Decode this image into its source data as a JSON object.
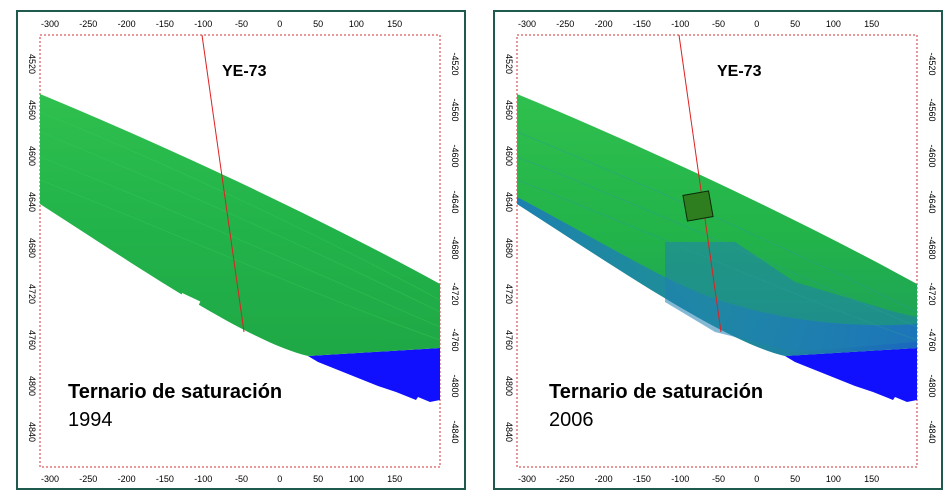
{
  "panels": [
    {
      "well_label": "YE-73",
      "caption_title": "Ternario de saturación",
      "caption_year": "1994",
      "x_ticks": [
        "-300",
        "-250",
        "-200",
        "-150",
        "-100",
        "-50",
        "0",
        "50",
        "100",
        "150"
      ],
      "y_ticks_left": [
        "4520",
        "4560",
        "4600",
        "4640",
        "4680",
        "4720",
        "4760",
        "4800",
        "4840"
      ],
      "y_ticks_right": [
        "-4520",
        "-4560",
        "-4600",
        "-4640",
        "-4680",
        "-4720",
        "-4760",
        "-4800",
        "-4840"
      ]
    },
    {
      "well_label": "YE-73",
      "caption_title": "Ternario de saturación",
      "caption_year": "2006",
      "x_ticks": [
        "-300",
        "-250",
        "-200",
        "-150",
        "-100",
        "-50",
        "0",
        "50",
        "100",
        "150"
      ],
      "y_ticks_left": [
        "4520",
        "4560",
        "4600",
        "4640",
        "4680",
        "4720",
        "4760",
        "4800",
        "4840"
      ],
      "y_ticks_right": [
        "-4520",
        "-4560",
        "-4600",
        "-4640",
        "-4680",
        "-4720",
        "-4760",
        "-4800",
        "-4840"
      ]
    }
  ],
  "colors": {
    "border": "#1e5a4e",
    "axis_frame": "#d03030",
    "oil_green": "#22b34a",
    "water_blue": "#1010ff",
    "well_trajectory": "#e02020",
    "marker": "#2e7d1e"
  }
}
